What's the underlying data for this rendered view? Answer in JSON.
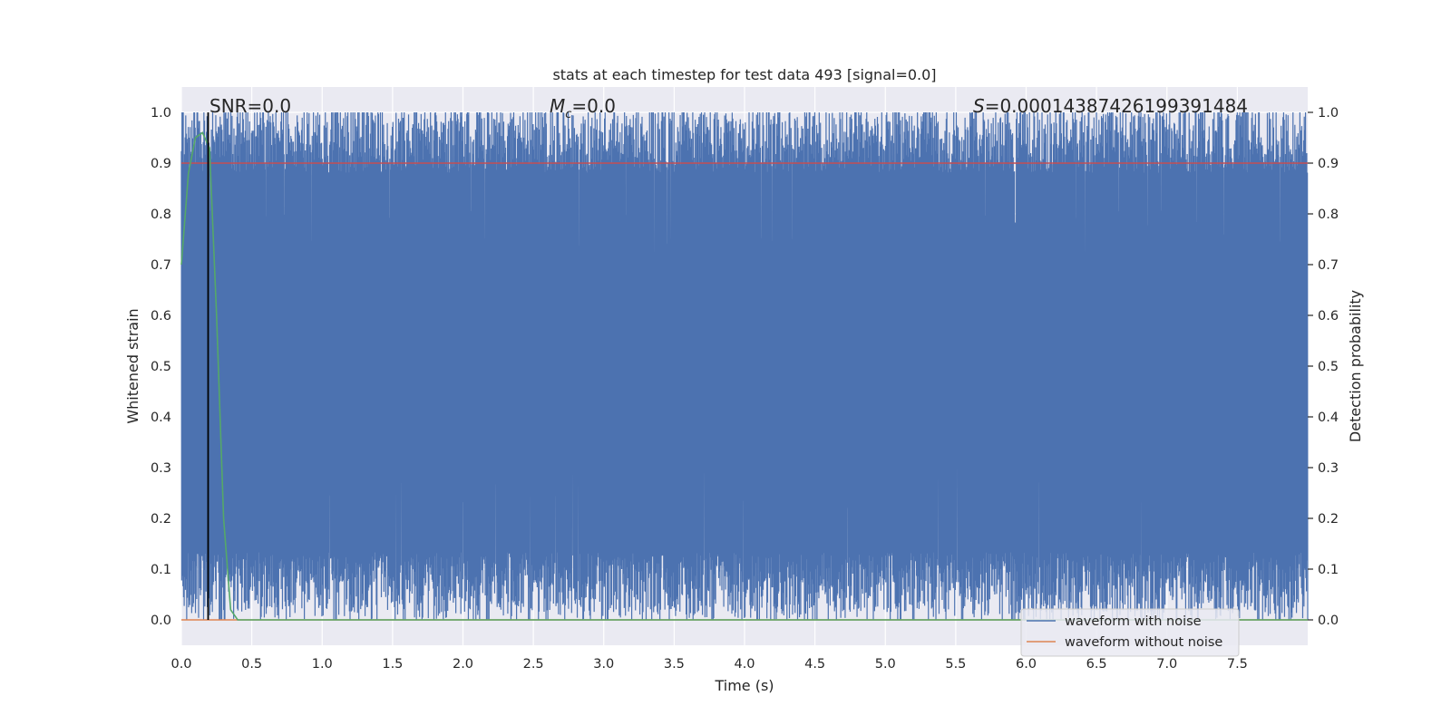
{
  "chart_data": {
    "type": "line",
    "title": "stats at each timestep for test data 493 [signal=0.0]",
    "xlabel": "Time (s)",
    "ylabel": "Whitened strain",
    "y2label": "Detection probability",
    "xlim": [
      0.0,
      8.0
    ],
    "ylim": [
      -0.05,
      1.05
    ],
    "y2lim": [
      -0.05,
      1.05
    ],
    "x_ticks": [
      "0.0",
      "0.5",
      "1.0",
      "1.5",
      "2.0",
      "2.5",
      "3.0",
      "3.5",
      "4.0",
      "4.5",
      "5.0",
      "5.5",
      "6.0",
      "6.5",
      "7.0",
      "7.5"
    ],
    "y_ticks": [
      "0.0",
      "0.1",
      "0.2",
      "0.3",
      "0.4",
      "0.5",
      "0.6",
      "0.7",
      "0.8",
      "0.9",
      "1.0"
    ],
    "y2_ticks": [
      "0.0",
      "0.1",
      "0.2",
      "0.3",
      "0.4",
      "0.5",
      "0.6",
      "0.7",
      "0.8",
      "0.9",
      "1.0"
    ],
    "grid": true,
    "legend_position": "bottom-right",
    "colors": {
      "background": "#eaeaf2",
      "noise": "#4c72b0",
      "clean": "#dd8452",
      "probability": "#55a868",
      "threshold": "#c44e52",
      "marker": "#000000"
    },
    "annotations": {
      "snr_label": "SNR=0.0",
      "mc_symbol": "M",
      "mc_sub": "c",
      "mc_value": "=0.0",
      "s_symbol": "S",
      "s_value": "=0.00014387426199391484"
    },
    "series": [
      {
        "name": "waveform with noise",
        "kind": "noise",
        "lower_envelope_typ": 0.07,
        "upper_envelope_typ": 0.93,
        "range": [
          0.0,
          1.0
        ]
      },
      {
        "name": "waveform without noise",
        "kind": "flat",
        "value": 0.0
      },
      {
        "kind": "probability",
        "x": [
          0.0,
          0.05,
          0.1,
          0.15,
          0.2,
          0.25,
          0.3,
          0.35,
          0.4,
          8.0
        ],
        "y": [
          0.7,
          0.88,
          0.95,
          0.96,
          0.93,
          0.6,
          0.2,
          0.02,
          0.0,
          0.0
        ]
      }
    ],
    "threshold": 0.9,
    "marker_time": 0.19
  }
}
